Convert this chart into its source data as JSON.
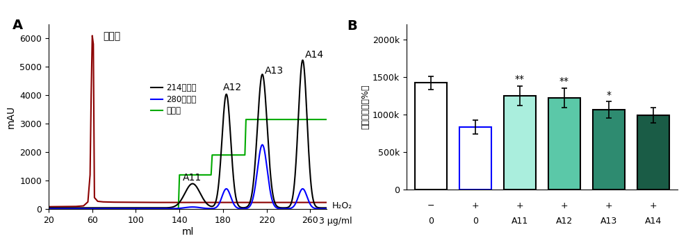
{
  "panel_A": {
    "ylabel": "mAU",
    "xlabel": "ml",
    "xlim": [
      20,
      275
    ],
    "ylim": [
      0,
      6500
    ],
    "yticks": [
      0,
      1000,
      2000,
      3000,
      4000,
      5000,
      6000
    ],
    "xticks": [
      20,
      60,
      100,
      140,
      180,
      220,
      260
    ],
    "legend_entries": [
      "214吸光度",
      "280吸光度",
      "洗脱梯"
    ],
    "conductivity_text": "电导性",
    "conductivity_x": 70,
    "conductivity_y": 5900,
    "ann_A11_x": 143,
    "ann_A11_y": 920,
    "ann_A12_x": 180,
    "ann_A12_y": 4100,
    "ann_A13_x": 218,
    "ann_A13_y": 4700,
    "ann_A14_x": 255,
    "ann_A14_y": 5250
  },
  "panel_B": {
    "ylabel": "细胞存活率（%）",
    "ylim": [
      0,
      2200000
    ],
    "ytick_vals": [
      0,
      500000,
      1000000,
      1500000,
      2000000
    ],
    "ytick_labels": [
      "0",
      "500k",
      "1000k",
      "1500k",
      "2000k"
    ],
    "bar_heights": [
      1420000,
      830000,
      1250000,
      1220000,
      1060000,
      990000
    ],
    "bar_errors": [
      90000,
      90000,
      130000,
      130000,
      110000,
      100000
    ],
    "bar_colors": [
      "white",
      "white",
      "#AAEEDD",
      "#5BC8A8",
      "#2E8B70",
      "#1A5C46"
    ],
    "bar_edge_colors": [
      "black",
      "blue",
      "black",
      "black",
      "black",
      "black"
    ],
    "significance": [
      "",
      "",
      "**",
      "**",
      "*",
      ""
    ],
    "h2o2_row": [
      "−",
      "+",
      "+",
      "+",
      "+",
      "+"
    ],
    "ug_row": [
      "0",
      "0",
      "A11",
      "A12",
      "A13",
      "A14"
    ],
    "h2o2_label": "H₂O₂",
    "ug_label": "3 μg/ml"
  }
}
